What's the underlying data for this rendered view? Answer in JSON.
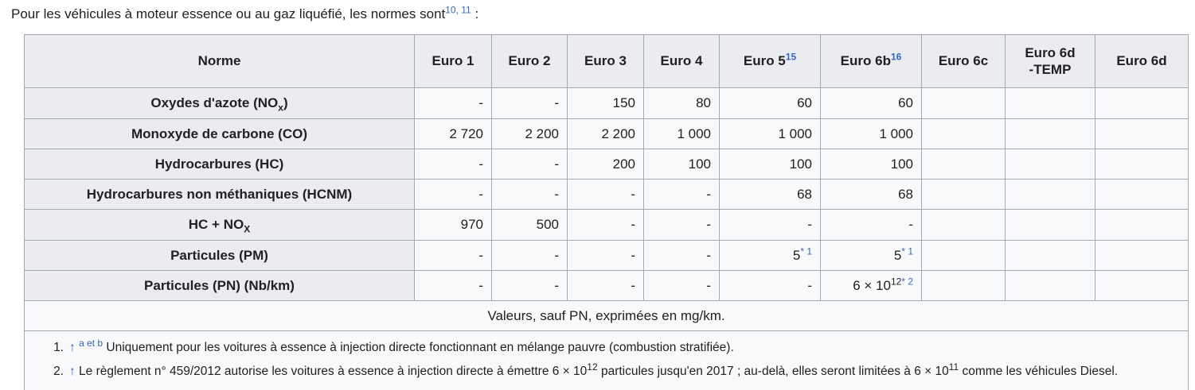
{
  "colors": {
    "link_blue": "#3366cc",
    "table_border": "#a2a9b1",
    "header_bg": "#eaecf0",
    "cell_bg": "#f8f9fa",
    "text": "#202122"
  },
  "intro": {
    "parts": [
      "Pour les véhicules à moteur essence ou au gaz liquéfié, les normes sont",
      {
        "type": "ref",
        "text": "10, 11"
      },
      " :"
    ]
  },
  "table": {
    "columns": [
      [
        "Norme"
      ],
      [
        "Euro 1"
      ],
      [
        "Euro 2"
      ],
      [
        "Euro 3"
      ],
      [
        "Euro 4"
      ],
      [
        "Euro 5",
        {
          "type": "ref",
          "text": "15"
        }
      ],
      [
        "Euro 6b",
        {
          "type": "ref",
          "text": "16"
        }
      ],
      [
        "Euro 6c"
      ],
      [
        "Euro 6d",
        {
          "type": "br"
        },
        "-TEMP"
      ],
      [
        "Euro 6d"
      ]
    ],
    "rows": [
      {
        "label": [
          "Oxydes d'azote (NO",
          {
            "type": "sub",
            "text": "x"
          },
          ")"
        ],
        "values": [
          "-",
          "-",
          "150",
          "80",
          "60",
          "60",
          "",
          "",
          ""
        ]
      },
      {
        "label": [
          "Monoxyde de carbone (CO)"
        ],
        "values": [
          "2 720",
          "2 200",
          "2 200",
          "1 000",
          "1 000",
          "1 000",
          "",
          "",
          ""
        ]
      },
      {
        "label": [
          "Hydrocarbures (HC)"
        ],
        "values": [
          "-",
          "-",
          "200",
          "100",
          "100",
          "100",
          "",
          "",
          ""
        ]
      },
      {
        "label": [
          "Hydrocarbures non méthaniques (HCNM)"
        ],
        "values": [
          "-",
          "-",
          "-",
          "-",
          "68",
          "68",
          "",
          "",
          ""
        ]
      },
      {
        "label": [
          "HC + NO",
          {
            "type": "sub",
            "text": "X"
          }
        ],
        "values": [
          "970",
          "500",
          "-",
          "-",
          "-",
          "-",
          "",
          "",
          ""
        ]
      },
      {
        "label": [
          "Particules (PM)"
        ],
        "values": [
          "-",
          "-",
          "-",
          "-",
          [
            "5",
            {
              "type": "ref",
              "text": "* 1"
            }
          ],
          [
            "5",
            {
              "type": "ref",
              "text": "* 1"
            }
          ],
          "",
          "",
          ""
        ]
      },
      {
        "label": [
          "Particules (PN) (Nb/km)"
        ],
        "values": [
          "-",
          "-",
          "-",
          "-",
          "-",
          [
            "6 × 10",
            {
              "type": "sup",
              "text": "12"
            },
            {
              "type": "ref",
              "text": "* 2"
            }
          ],
          "",
          "",
          ""
        ]
      }
    ],
    "units_note": "Valeurs, sauf PN, exprimées en mg/km."
  },
  "footnotes": [
    {
      "number": "1.",
      "parts": [
        {
          "type": "uplink",
          "text": "↑"
        },
        " ",
        {
          "type": "ref",
          "text": "a et b"
        },
        " Uniquement pour les voitures à essence à injection directe fonctionnant en mélange pauvre (combustion stratifiée)."
      ]
    },
    {
      "number": "2.",
      "parts": [
        {
          "type": "uplink",
          "text": "↑"
        },
        " Le règlement n° 459/2012 autorise les voitures à essence à injection directe à émettre 6 × 10",
        {
          "type": "sup",
          "text": "12"
        },
        " particules jusqu'en 2017 ; au-delà, elles seront limitées à 6 × 10",
        {
          "type": "sup",
          "text": "11"
        },
        " comme les véhicules Diesel."
      ]
    }
  ]
}
